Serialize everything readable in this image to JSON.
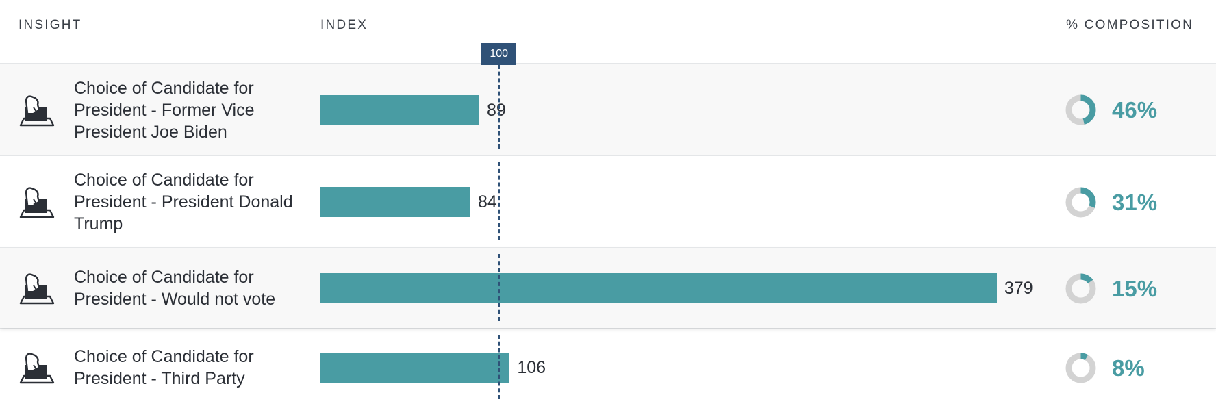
{
  "headers": {
    "insight": "INSIGHT",
    "index": "INDEX",
    "composition": "% COMPOSITION"
  },
  "reference": {
    "label": "100",
    "value": 100
  },
  "colors": {
    "bar": "#499ca3",
    "reference": "#2f5177",
    "donut_track": "#d3d3d3",
    "percent": "#499ca3"
  },
  "icon": "ballot-box-icon",
  "chart_data": {
    "type": "bar",
    "orientation": "horizontal",
    "categories": [
      "Choice of Candidate for President - Former Vice President Joe Biden",
      "Choice of Candidate for President - President Donald Trump",
      "Choice of Candidate for President - Would not vote",
      "Choice of Candidate for President - Third Party"
    ],
    "series": [
      {
        "name": "INDEX",
        "values": [
          89,
          84,
          379,
          106
        ]
      },
      {
        "name": "% COMPOSITION",
        "values": [
          46,
          31,
          15,
          8
        ]
      }
    ],
    "xlim": [
      0,
      379
    ],
    "reference_line": 100,
    "grid": false
  },
  "rows": [
    {
      "label": "Choice of Candidate for President - Former Vice President Joe Biden",
      "index": 89,
      "index_label": "89",
      "composition": 46,
      "composition_label": "46%"
    },
    {
      "label": "Choice of Candidate for President - President Donald Trump",
      "index": 84,
      "index_label": "84",
      "composition": 31,
      "composition_label": "31%"
    },
    {
      "label": "Choice of Candidate for President - Would not vote",
      "index": 379,
      "index_label": "379",
      "composition": 15,
      "composition_label": "15%"
    },
    {
      "label": "Choice of Candidate for President - Third Party",
      "index": 106,
      "index_label": "106",
      "composition": 8,
      "composition_label": "8%"
    }
  ]
}
